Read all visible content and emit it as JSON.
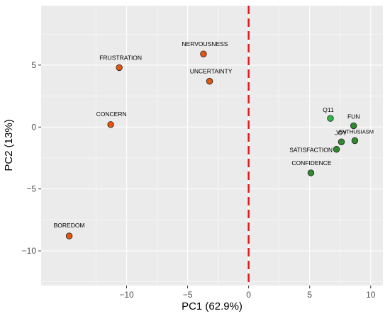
{
  "chart_data": {
    "type": "scatter",
    "title": "",
    "xlabel": "PC1 (62.9%)",
    "ylabel": "PC2 (13%)",
    "xlim": [
      -17,
      11
    ],
    "ylim": [
      -12.8,
      9.8
    ],
    "xticks": [
      -10,
      -5,
      0,
      5,
      10
    ],
    "yticks": [
      -10,
      -5,
      0,
      5
    ],
    "xtick_labels": [
      "−10",
      "−5",
      "0",
      "5",
      "10"
    ],
    "ytick_labels": [
      "−10",
      "−5",
      "0",
      "5"
    ],
    "grid": true,
    "legend": "none",
    "reference_line": {
      "x": 0,
      "style": "dashed",
      "color": "#e31a1c"
    },
    "colors": {
      "negative": "#e6550d",
      "positive": "#2e8b2e",
      "q11": "#33b54a",
      "panel": "#ebebeb",
      "grid": "#ffffff"
    },
    "points": [
      {
        "label": "NERVOUSNESS",
        "x": -3.7,
        "y": 5.9,
        "group": "negative"
      },
      {
        "label": "FRUSTRATION",
        "x": -10.6,
        "y": 4.8,
        "group": "negative"
      },
      {
        "label": "UNCERTAINTY",
        "x": -3.2,
        "y": 3.7,
        "group": "negative"
      },
      {
        "label": "CONCERN",
        "x": -11.3,
        "y": 0.2,
        "group": "negative"
      },
      {
        "label": "BOREDOM",
        "x": -14.7,
        "y": -8.8,
        "group": "negative"
      },
      {
        "label": "Q11",
        "x": 6.7,
        "y": 0.7,
        "group": "q11"
      },
      {
        "label": "FUN",
        "x": 8.6,
        "y": 0.1,
        "group": "positive"
      },
      {
        "label": "ENTHUSIASM",
        "x": 8.7,
        "y": -1.1,
        "group": "positive"
      },
      {
        "label": "JOY",
        "x": 7.6,
        "y": -1.2,
        "group": "positive"
      },
      {
        "label": "SATISFACTION",
        "x": 7.2,
        "y": -1.8,
        "group": "positive"
      },
      {
        "label": "CONFIDENCE",
        "x": 5.1,
        "y": -3.7,
        "group": "positive"
      }
    ]
  }
}
